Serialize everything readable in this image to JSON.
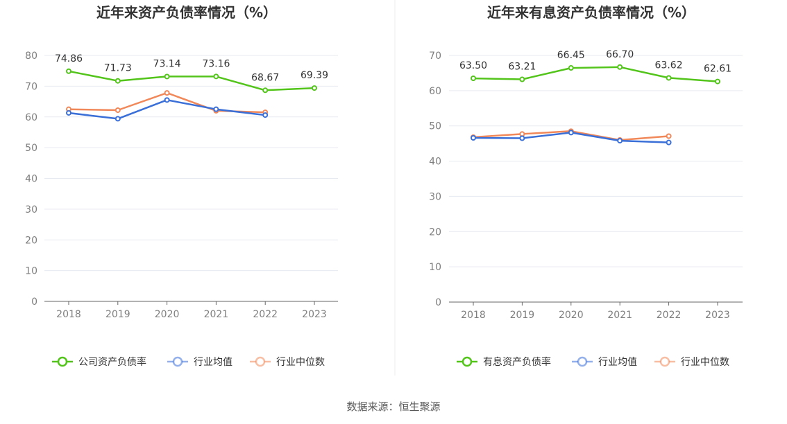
{
  "source": "数据来源：恒生聚源",
  "colors": {
    "green": "#52c41a",
    "blue": "#3a6fd8",
    "orange": "#f0885a",
    "grid": "#e6e9f0",
    "axis": "#666666"
  },
  "chart_data": [
    {
      "type": "line",
      "title": "近年来资产负债率情况（%）",
      "categories": [
        "2018",
        "2019",
        "2020",
        "2021",
        "2022",
        "2023"
      ],
      "ylim": [
        0,
        80
      ],
      "yticks": [
        0,
        10,
        20,
        30,
        40,
        50,
        60,
        70,
        80
      ],
      "grid": true,
      "legend_position": "bottom",
      "series": [
        {
          "name": "公司资产负债率",
          "color": "#52c41a",
          "labeled": true,
          "values": [
            74.86,
            71.73,
            73.14,
            73.16,
            68.67,
            69.39
          ],
          "labels": [
            "74.86",
            "71.73",
            "73.14",
            "73.16",
            "68.67",
            "69.39"
          ]
        },
        {
          "name": "行业均值",
          "color": "#3a6fd8",
          "labeled": false,
          "values": [
            61.3,
            59.4,
            65.5,
            62.5,
            60.6,
            null
          ]
        },
        {
          "name": "行业中位数",
          "color": "#f0885a",
          "labeled": false,
          "values": [
            62.5,
            62.2,
            67.8,
            62.0,
            61.5,
            null
          ]
        }
      ]
    },
    {
      "type": "line",
      "title": "近年来有息资产负债率情况（%）",
      "categories": [
        "2018",
        "2019",
        "2020",
        "2021",
        "2022",
        "2023"
      ],
      "ylim": [
        0,
        70
      ],
      "yticks": [
        0,
        10,
        20,
        30,
        40,
        50,
        60,
        70
      ],
      "grid": true,
      "legend_position": "bottom",
      "series": [
        {
          "name": "有息资产负债率",
          "color": "#52c41a",
          "labeled": true,
          "values": [
            63.5,
            63.21,
            66.45,
            66.7,
            63.62,
            62.61
          ],
          "labels": [
            "63.50",
            "63.21",
            "66.45",
            "66.70",
            "63.62",
            "62.61"
          ]
        },
        {
          "name": "行业均值",
          "color": "#3a6fd8",
          "labeled": false,
          "values": [
            46.6,
            46.5,
            48.1,
            45.8,
            45.3,
            null
          ]
        },
        {
          "name": "行业中位数",
          "color": "#f0885a",
          "labeled": false,
          "values": [
            46.8,
            47.7,
            48.5,
            46.0,
            47.1,
            null
          ]
        }
      ]
    }
  ]
}
